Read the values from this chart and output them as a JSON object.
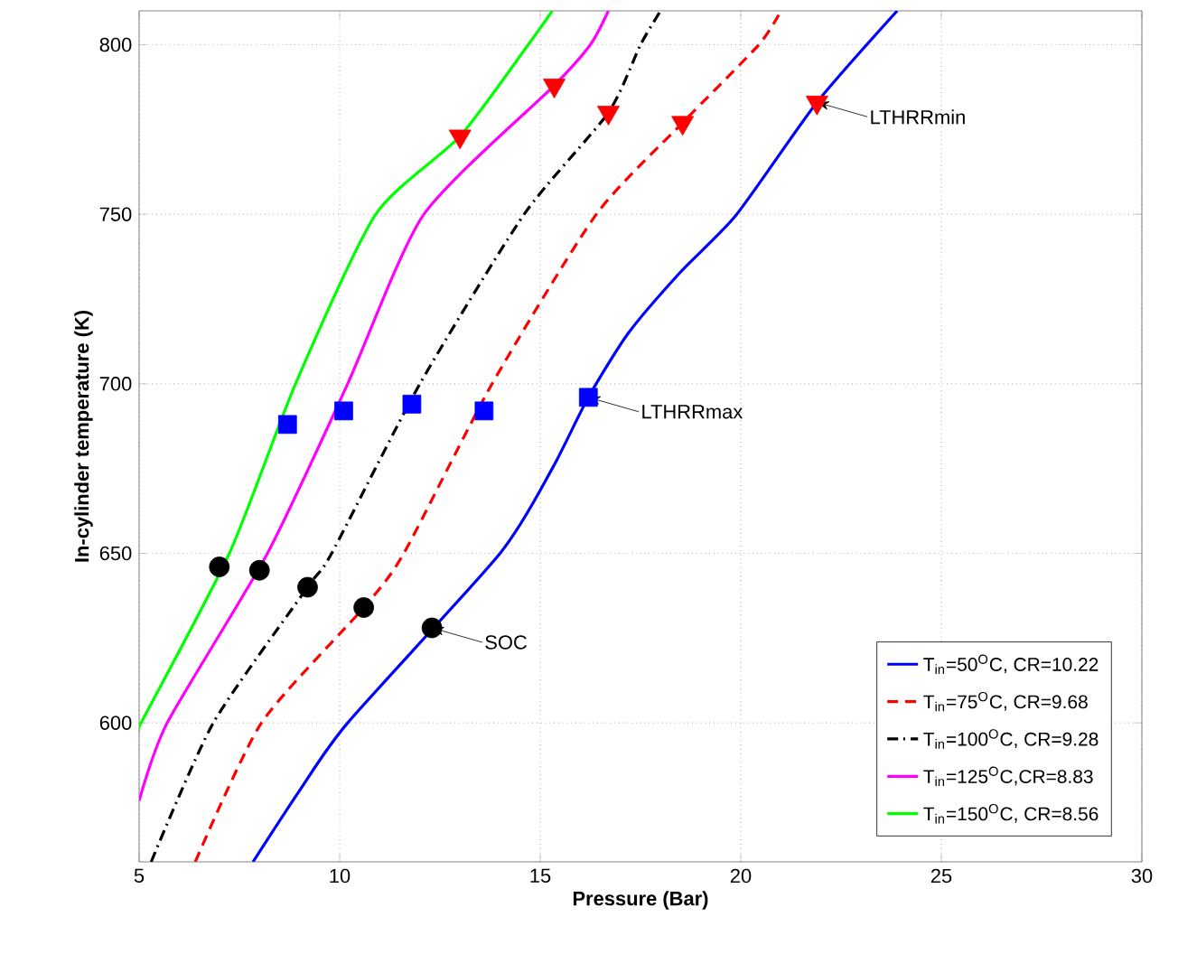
{
  "chart_data": {
    "type": "line",
    "xlabel": "Pressure (Bar)",
    "ylabel": "In-cylinder temperature (K)",
    "xlim": [
      5,
      30
    ],
    "ylim": [
      559,
      810
    ],
    "xticks": [
      5,
      10,
      15,
      20,
      25,
      30
    ],
    "yticks": [
      600,
      650,
      700,
      750,
      800
    ],
    "grid": true,
    "legend": "bottom right",
    "series": [
      {
        "type": "line",
        "name": "T$_{in}$=50$^{O}$C, CR=10.22",
        "color": "#0000ff",
        "line_style": "solid",
        "x": [
          7.84,
          9,
          10.2,
          14,
          15.3,
          16.2,
          17.2,
          18.5,
          19.9,
          21.9,
          23.9
        ],
        "values": [
          559,
          580,
          600,
          650,
          675,
          696,
          715,
          733,
          750,
          783,
          810
        ]
      },
      {
        "type": "line",
        "name": "T$_{in}$=75$^{O}$C, CR=9.68",
        "color": "#ff0000",
        "line_style": "dashed",
        "x": [
          6.4,
          8.05,
          10.6,
          11.6,
          13.8,
          16.4,
          18.55,
          20.45,
          21
        ],
        "values": [
          559,
          600,
          634,
          650,
          700,
          750,
          777,
          800,
          810
        ]
      },
      {
        "type": "line",
        "name": "T$_{in}$=100$^{O}$C, CR=9.28",
        "color": "#000000",
        "line_style": "dashdot",
        "x": [
          5.3,
          6.85,
          9.2,
          9.8,
          12,
          14.6,
          16.7,
          17.5,
          18
        ],
        "values": [
          559,
          600,
          640,
          650,
          700,
          750,
          780,
          800,
          810
        ]
      },
      {
        "type": "line",
        "name": "T$_{in}$=125$^{O}$C,CR=8.83",
        "color": "#ff00ff",
        "line_style": "solid",
        "x": [
          5,
          5.7,
          8.2,
          10.2,
          12.1,
          15.35,
          16.25,
          16.7
        ],
        "values": [
          577,
          600,
          650,
          700,
          750,
          788,
          800,
          810
        ]
      },
      {
        "type": "line",
        "name": "T$_{in}$=150$^{O}$C, CR=8.56",
        "color": "#00ff00",
        "line_style": "solid",
        "x": [
          5,
          5.05,
          7.25,
          8.9,
          10.9,
          13,
          14.7,
          15.3
        ],
        "values": [
          598,
          600,
          650,
          700,
          750,
          773,
          800,
          810
        ]
      },
      {
        "type": "scatter",
        "marker": "square",
        "color": "#0000ff",
        "x": [
          8.7,
          10.1,
          11.8,
          13.6,
          16.2
        ],
        "values": [
          688,
          692,
          694,
          692,
          696
        ]
      },
      {
        "type": "scatter",
        "marker": "circle",
        "color": "#000000",
        "x": [
          7.0,
          8.0,
          9.2,
          10.6,
          12.3
        ],
        "values": [
          646,
          645,
          640,
          634,
          628
        ]
      },
      {
        "type": "scatter",
        "marker": "triangle",
        "color": "#ff0000",
        "x": [
          13.0,
          15.35,
          16.7,
          18.55,
          21.9
        ],
        "values": [
          773,
          788,
          780,
          777,
          783
        ]
      }
    ],
    "annotations": [
      {
        "text": "LTHRRmin",
        "x": 21.9,
        "y": 783
      },
      {
        "text": "LTHRRmax",
        "x": 16.2,
        "y": 696
      },
      {
        "text": "SOC",
        "x": 12.3,
        "y": 628
      }
    ]
  }
}
